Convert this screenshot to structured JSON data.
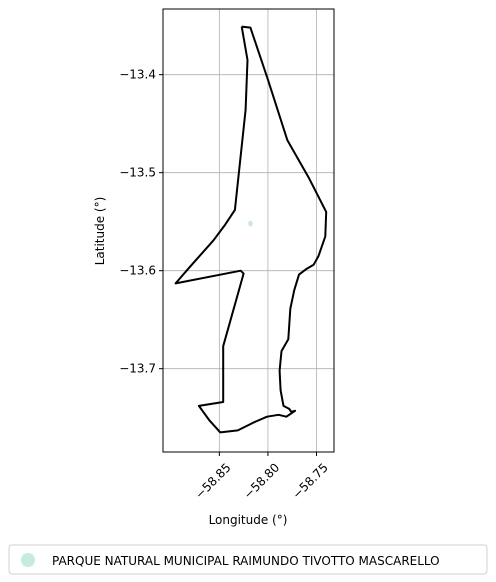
{
  "chart_data": {
    "type": "map",
    "xlabel": "Longitude (°)",
    "ylabel": "Latitude (°)",
    "xlim": [
      -58.908,
      -58.732
    ],
    "ylim": [
      -13.785,
      -13.333
    ],
    "xticks": [
      -58.85,
      -58.8,
      -58.75
    ],
    "xtick_labels": [
      "−58.85",
      "−58.80",
      "−58.75"
    ],
    "yticks": [
      -13.4,
      -13.5,
      -13.6,
      -13.7
    ],
    "ytick_labels": [
      "−13.4",
      "−13.5",
      "−13.6",
      "−13.7"
    ],
    "grid": true,
    "legend_position": "bottom",
    "series": [
      {
        "name": "PARQUE NATURAL MUNICIPAL RAIMUNDO TIVOTTO MASCARELLO",
        "color": "#c7eadc",
        "type": "point",
        "x": -58.818,
        "y": -13.552
      },
      {
        "type": "outline",
        "color": "#000000",
        "x": [
          -58.827,
          -58.818,
          -58.8,
          -58.78,
          -58.758,
          -58.74,
          -58.741,
          -58.748,
          -58.753,
          -58.76,
          -58.768,
          -58.773,
          -58.777,
          -58.779,
          -58.786,
          -58.788,
          -58.787,
          -58.784,
          -58.778,
          -58.776,
          -58.772,
          -58.781,
          -58.789,
          -58.801,
          -58.815,
          -58.831,
          -58.849,
          -58.86,
          -58.871,
          -58.846,
          -58.846,
          -58.825,
          -58.828,
          -58.895,
          -58.882,
          -58.856,
          -58.844,
          -58.834,
          -58.823,
          -58.821,
          -58.827
        ],
        "y": [
          -13.351,
          -13.352,
          -13.405,
          -13.467,
          -13.505,
          -13.54,
          -13.565,
          -13.585,
          -13.594,
          -13.598,
          -13.604,
          -13.62,
          -13.639,
          -13.67,
          -13.682,
          -13.702,
          -13.722,
          -13.738,
          -13.741,
          -13.744,
          -13.743,
          -13.749,
          -13.747,
          -13.749,
          -13.755,
          -13.763,
          -13.765,
          -13.753,
          -13.738,
          -13.734,
          -13.677,
          -13.603,
          -13.6,
          -13.613,
          -13.598,
          -13.569,
          -13.553,
          -13.538,
          -13.436,
          -13.385,
          -13.351
        ]
      }
    ]
  }
}
